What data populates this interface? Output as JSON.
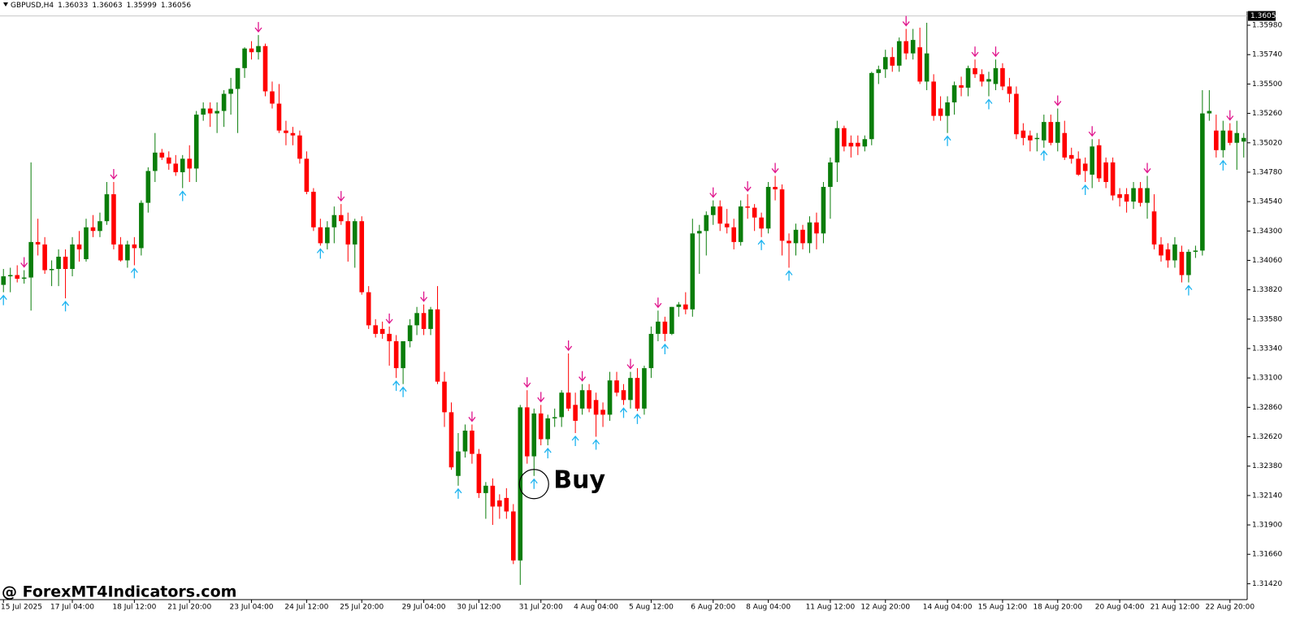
{
  "chart_data": {
    "type": "candlestick",
    "symbol": "GBPUSD,H4",
    "quote": [
      1.36033,
      1.36063,
      1.35999,
      1.36056
    ],
    "bull_color": "#0a7d0a",
    "bear_color": "#ff0000",
    "sell_color": "#e0148c",
    "buy_color": "#1eb4f0",
    "ylim": [
      1.3129,
      1.3606
    ],
    "yticks": [
      {
        "value": 1.3598,
        "label": "1.35980"
      },
      {
        "value": 1.3574,
        "label": "1.35740"
      },
      {
        "value": 1.355,
        "label": "1.35500"
      },
      {
        "value": 1.3526,
        "label": "1.35260"
      },
      {
        "value": 1.3502,
        "label": "1.35020"
      },
      {
        "value": 1.3478,
        "label": "1.34780"
      },
      {
        "value": 1.3454,
        "label": "1.34540"
      },
      {
        "value": 1.343,
        "label": "1.34300"
      },
      {
        "value": 1.3406,
        "label": "1.34060"
      },
      {
        "value": 1.3382,
        "label": "1.33820"
      },
      {
        "value": 1.3358,
        "label": "1.33580"
      },
      {
        "value": 1.3334,
        "label": "1.33340"
      },
      {
        "value": 1.331,
        "label": "1.33100"
      },
      {
        "value": 1.3286,
        "label": "1.32860"
      },
      {
        "value": 1.3262,
        "label": "1.32620"
      },
      {
        "value": 1.3238,
        "label": "1.32380"
      },
      {
        "value": 1.3214,
        "label": "1.32140"
      },
      {
        "value": 1.319,
        "label": "1.31900"
      },
      {
        "value": 1.3166,
        "label": "1.31660"
      },
      {
        "value": 1.3142,
        "label": "1.31420"
      }
    ],
    "current_price": 1.36056,
    "xticks": [
      {
        "value": 0,
        "label": "15 Jul 2025"
      },
      {
        "value": 10,
        "label": "17 Jul 04:00"
      },
      {
        "value": 19,
        "label": "18 Jul 12:00"
      },
      {
        "value": 27,
        "label": "21 Jul 20:00"
      },
      {
        "value": 36,
        "label": "23 Jul 04:00"
      },
      {
        "value": 44,
        "label": "24 Jul 12:00"
      },
      {
        "value": 52,
        "label": "25 Jul 20:00"
      },
      {
        "value": 61,
        "label": "29 Jul 04:00"
      },
      {
        "value": 69,
        "label": "30 Jul 12:00"
      },
      {
        "value": 78,
        "label": "31 Jul 20:00"
      },
      {
        "value": 86,
        "label": "4 Aug 04:00"
      },
      {
        "value": 94,
        "label": "5 Aug 12:00"
      },
      {
        "value": 103,
        "label": "6 Aug 20:00"
      },
      {
        "value": 111,
        "label": "8 Aug 04:00"
      },
      {
        "value": 120,
        "label": "11 Aug 12:00"
      },
      {
        "value": 128,
        "label": "12 Aug 20:00"
      },
      {
        "value": 137,
        "label": "14 Aug 04:00"
      },
      {
        "value": 145,
        "label": "15 Aug 12:00"
      },
      {
        "value": 153,
        "label": "18 Aug 20:00"
      },
      {
        "value": 162,
        "label": "20 Aug 04:00"
      },
      {
        "value": 170,
        "label": "21 Aug 12:00"
      },
      {
        "value": 178,
        "label": "22 Aug 20:00"
      }
    ],
    "candles": [
      [
        1.3386,
        1.3399,
        1.338,
        1.3393
      ],
      [
        1.3393,
        1.34,
        1.338,
        1.3394
      ],
      [
        1.3394,
        1.3402,
        1.3388,
        1.3391
      ],
      [
        1.3391,
        1.3398,
        1.3387,
        1.3392
      ],
      [
        1.3392,
        1.3486,
        1.3365,
        1.3421
      ],
      [
        1.3421,
        1.344,
        1.341,
        1.3419
      ],
      [
        1.3419,
        1.3425,
        1.3395,
        1.3398
      ],
      [
        1.3398,
        1.3406,
        1.3385,
        1.3399
      ],
      [
        1.3399,
        1.3415,
        1.3385,
        1.3409
      ],
      [
        1.3409,
        1.3415,
        1.3375,
        1.3399
      ],
      [
        1.3399,
        1.3425,
        1.3393,
        1.3419
      ],
      [
        1.3419,
        1.343,
        1.3405,
        1.3415
      ],
      [
        1.3407,
        1.344,
        1.3405,
        1.3433
      ],
      [
        1.3433,
        1.3443,
        1.3425,
        1.343
      ],
      [
        1.343,
        1.3445,
        1.3425,
        1.3438
      ],
      [
        1.3438,
        1.347,
        1.3435,
        1.346
      ],
      [
        1.346,
        1.347,
        1.3415,
        1.3419
      ],
      [
        1.3419,
        1.3425,
        1.3405,
        1.3406
      ],
      [
        1.3406,
        1.3422,
        1.34,
        1.3419
      ],
      [
        1.3419,
        1.3425,
        1.3402,
        1.3416
      ],
      [
        1.3416,
        1.3455,
        1.341,
        1.3453
      ],
      [
        1.3453,
        1.3482,
        1.3445,
        1.3479
      ],
      [
        1.3479,
        1.351,
        1.347,
        1.3494
      ],
      [
        1.3494,
        1.3497,
        1.3488,
        1.349
      ],
      [
        1.349,
        1.3495,
        1.348,
        1.3485
      ],
      [
        1.3485,
        1.3492,
        1.3475,
        1.3478
      ],
      [
        1.3478,
        1.3492,
        1.3465,
        1.3489
      ],
      [
        1.3489,
        1.35,
        1.347,
        1.3481
      ],
      [
        1.3481,
        1.3528,
        1.347,
        1.3525
      ],
      [
        1.3525,
        1.3535,
        1.352,
        1.353
      ],
      [
        1.353,
        1.3535,
        1.3515,
        1.3526
      ],
      [
        1.3526,
        1.3535,
        1.351,
        1.3528
      ],
      [
        1.3528,
        1.3545,
        1.3515,
        1.3542
      ],
      [
        1.3542,
        1.3555,
        1.3525,
        1.3546
      ],
      [
        1.3546,
        1.3563,
        1.351,
        1.3563
      ],
      [
        1.3563,
        1.358,
        1.3555,
        1.3579
      ],
      [
        1.3579,
        1.3585,
        1.357,
        1.3576
      ],
      [
        1.3576,
        1.359,
        1.357,
        1.3581
      ],
      [
        1.3581,
        1.3583,
        1.354,
        1.3544
      ],
      [
        1.3544,
        1.3552,
        1.353,
        1.3534
      ],
      [
        1.3534,
        1.355,
        1.351,
        1.3512
      ],
      [
        1.3512,
        1.352,
        1.35,
        1.351
      ],
      [
        1.351,
        1.3515,
        1.35,
        1.3508
      ],
      [
        1.3508,
        1.3512,
        1.3485,
        1.3489
      ],
      [
        1.3489,
        1.3495,
        1.346,
        1.3462
      ],
      [
        1.3462,
        1.3465,
        1.343,
        1.3433
      ],
      [
        1.3433,
        1.344,
        1.3418,
        1.342
      ],
      [
        1.342,
        1.3438,
        1.3415,
        1.3433
      ],
      [
        1.3433,
        1.345,
        1.342,
        1.3443
      ],
      [
        1.3443,
        1.3452,
        1.3435,
        1.3438
      ],
      [
        1.3438,
        1.3445,
        1.3405,
        1.3419
      ],
      [
        1.3419,
        1.344,
        1.34,
        1.3438
      ],
      [
        1.3438,
        1.3442,
        1.3378,
        1.338
      ],
      [
        1.338,
        1.3385,
        1.335,
        1.3353
      ],
      [
        1.3353,
        1.3358,
        1.3343,
        1.3346
      ],
      [
        1.335,
        1.3356,
        1.3342,
        1.3346
      ],
      [
        1.3346,
        1.3352,
        1.332,
        1.334
      ],
      [
        1.334,
        1.3345,
        1.331,
        1.3318
      ],
      [
        1.3318,
        1.334,
        1.3305,
        1.334
      ],
      [
        1.334,
        1.3358,
        1.3335,
        1.3353
      ],
      [
        1.3353,
        1.3368,
        1.3345,
        1.3363
      ],
      [
        1.3363,
        1.337,
        1.3345,
        1.335
      ],
      [
        1.335,
        1.3368,
        1.3345,
        1.3366
      ],
      [
        1.3366,
        1.3385,
        1.3305,
        1.3307
      ],
      [
        1.3307,
        1.3315,
        1.327,
        1.3282
      ],
      [
        1.3282,
        1.329,
        1.3235,
        1.3237
      ],
      [
        1.323,
        1.3265,
        1.3222,
        1.325
      ],
      [
        1.325,
        1.3272,
        1.3245,
        1.3267
      ],
      [
        1.3267,
        1.3272,
        1.324,
        1.3248
      ],
      [
        1.3248,
        1.3252,
        1.3212,
        1.3216
      ],
      [
        1.3216,
        1.3225,
        1.3195,
        1.3222
      ],
      [
        1.3222,
        1.3228,
        1.319,
        1.3205
      ],
      [
        1.321,
        1.3215,
        1.3195,
        1.3205
      ],
      [
        1.3212,
        1.322,
        1.3195,
        1.3201
      ],
      [
        1.3201,
        1.3207,
        1.3158,
        1.3161
      ],
      [
        1.3161,
        1.3288,
        1.3141,
        1.3286
      ],
      [
        1.3286,
        1.33,
        1.324,
        1.3246
      ],
      [
        1.3246,
        1.3285,
        1.323,
        1.3281
      ],
      [
        1.3281,
        1.3288,
        1.3255,
        1.326
      ],
      [
        1.326,
        1.328,
        1.3255,
        1.3277
      ],
      [
        1.3277,
        1.3285,
        1.327,
        1.3278
      ],
      [
        1.3278,
        1.33,
        1.327,
        1.3298
      ],
      [
        1.3298,
        1.333,
        1.3283,
        1.3285
      ],
      [
        1.3288,
        1.3298,
        1.3265,
        1.3275
      ],
      [
        1.3285,
        1.3305,
        1.328,
        1.33
      ],
      [
        1.33,
        1.3305,
        1.3282,
        1.3285
      ],
      [
        1.3292,
        1.3298,
        1.3262,
        1.328
      ],
      [
        1.3284,
        1.329,
        1.327,
        1.328
      ],
      [
        1.328,
        1.3315,
        1.3275,
        1.3308
      ],
      [
        1.3308,
        1.3315,
        1.3295,
        1.3298
      ],
      [
        1.33,
        1.3305,
        1.3288,
        1.3292
      ],
      [
        1.3292,
        1.3315,
        1.3285,
        1.331
      ],
      [
        1.331,
        1.3318,
        1.3283,
        1.3285
      ],
      [
        1.3285,
        1.332,
        1.328,
        1.3318
      ],
      [
        1.3318,
        1.3352,
        1.331,
        1.3346
      ],
      [
        1.3346,
        1.3365,
        1.334,
        1.3356
      ],
      [
        1.3356,
        1.336,
        1.334,
        1.3346
      ],
      [
        1.3346,
        1.3368,
        1.3345,
        1.3368
      ],
      [
        1.3368,
        1.3372,
        1.336,
        1.337
      ],
      [
        1.337,
        1.338,
        1.3362,
        1.3366
      ],
      [
        1.3366,
        1.344,
        1.336,
        1.3428
      ],
      [
        1.3428,
        1.3435,
        1.3395,
        1.343
      ],
      [
        1.343,
        1.3446,
        1.341,
        1.3443
      ],
      [
        1.3443,
        1.3455,
        1.3435,
        1.345
      ],
      [
        1.345,
        1.3455,
        1.343,
        1.3436
      ],
      [
        1.3436,
        1.3448,
        1.3428,
        1.3433
      ],
      [
        1.3433,
        1.344,
        1.3415,
        1.3421
      ],
      [
        1.3421,
        1.3455,
        1.3418,
        1.345
      ],
      [
        1.345,
        1.346,
        1.344,
        1.3449
      ],
      [
        1.3449,
        1.3452,
        1.343,
        1.3441
      ],
      [
        1.3441,
        1.3445,
        1.3425,
        1.3432
      ],
      [
        1.3432,
        1.347,
        1.3428,
        1.3466
      ],
      [
        1.3466,
        1.3475,
        1.3455,
        1.3464
      ],
      [
        1.3464,
        1.3468,
        1.341,
        1.3422
      ],
      [
        1.3422,
        1.3428,
        1.34,
        1.342
      ],
      [
        1.342,
        1.3436,
        1.341,
        1.3431
      ],
      [
        1.3431,
        1.3435,
        1.3415,
        1.342
      ],
      [
        1.342,
        1.3442,
        1.3412,
        1.3437
      ],
      [
        1.3437,
        1.3445,
        1.3415,
        1.3428
      ],
      [
        1.3428,
        1.347,
        1.342,
        1.3466
      ],
      [
        1.3466,
        1.349,
        1.344,
        1.3486
      ],
      [
        1.3486,
        1.352,
        1.347,
        1.3514
      ],
      [
        1.3514,
        1.3516,
        1.3495,
        1.3499
      ],
      [
        1.3502,
        1.3508,
        1.349,
        1.3499
      ],
      [
        1.3502,
        1.3508,
        1.3492,
        1.3499
      ],
      [
        1.3499,
        1.3508,
        1.3495,
        1.3505
      ],
      [
        1.3505,
        1.356,
        1.35,
        1.3559
      ],
      [
        1.3559,
        1.3565,
        1.355,
        1.3562
      ],
      [
        1.3562,
        1.3578,
        1.3555,
        1.3572
      ],
      [
        1.3572,
        1.358,
        1.356,
        1.3565
      ],
      [
        1.3565,
        1.3588,
        1.356,
        1.3585
      ],
      [
        1.3585,
        1.3595,
        1.357,
        1.3575
      ],
      [
        1.3575,
        1.3595,
        1.357,
        1.3586
      ],
      [
        1.358,
        1.3596,
        1.355,
        1.3552
      ],
      [
        1.3552,
        1.36,
        1.3545,
        1.3575
      ],
      [
        1.3552,
        1.3558,
        1.352,
        1.3524
      ],
      [
        1.353,
        1.354,
        1.352,
        1.3524
      ],
      [
        1.3524,
        1.354,
        1.351,
        1.3535
      ],
      [
        1.3535,
        1.3552,
        1.3525,
        1.3549
      ],
      [
        1.3549,
        1.3556,
        1.354,
        1.3547
      ],
      [
        1.3547,
        1.3565,
        1.354,
        1.3563
      ],
      [
        1.3563,
        1.357,
        1.3555,
        1.3558
      ],
      [
        1.3558,
        1.3562,
        1.3548,
        1.3552
      ],
      [
        1.3552,
        1.356,
        1.354,
        1.3554
      ],
      [
        1.355,
        1.357,
        1.3545,
        1.3563
      ],
      [
        1.3563,
        1.3567,
        1.3545,
        1.3548
      ],
      [
        1.3548,
        1.3555,
        1.3535,
        1.3542
      ],
      [
        1.3542,
        1.3548,
        1.3505,
        1.3509
      ],
      [
        1.3512,
        1.3518,
        1.35,
        1.3506
      ],
      [
        1.3508,
        1.3512,
        1.3495,
        1.3504
      ],
      [
        1.3505,
        1.351,
        1.3495,
        1.3506
      ],
      [
        1.3504,
        1.3525,
        1.3498,
        1.3519
      ],
      [
        1.3519,
        1.3525,
        1.35,
        1.3502
      ],
      [
        1.3502,
        1.353,
        1.3495,
        1.3519
      ],
      [
        1.351,
        1.352,
        1.3488,
        1.349
      ],
      [
        1.3492,
        1.3498,
        1.3485,
        1.3489
      ],
      [
        1.3489,
        1.3495,
        1.3475,
        1.3476
      ],
      [
        1.3485,
        1.349,
        1.347,
        1.3479
      ],
      [
        1.3476,
        1.3505,
        1.3465,
        1.3499
      ],
      [
        1.35,
        1.3505,
        1.347,
        1.3473
      ],
      [
        1.3486,
        1.349,
        1.3465,
        1.347
      ],
      [
        1.3486,
        1.349,
        1.3455,
        1.3459
      ],
      [
        1.346,
        1.3465,
        1.345,
        1.3457
      ],
      [
        1.346,
        1.3465,
        1.3445,
        1.3454
      ],
      [
        1.3454,
        1.347,
        1.3448,
        1.3465
      ],
      [
        1.3465,
        1.347,
        1.345,
        1.3453
      ],
      [
        1.3453,
        1.3475,
        1.344,
        1.3465
      ],
      [
        1.3446,
        1.346,
        1.3415,
        1.3419
      ],
      [
        1.3419,
        1.3425,
        1.3405,
        1.341
      ],
      [
        1.3415,
        1.342,
        1.34,
        1.3406
      ],
      [
        1.3406,
        1.3425,
        1.34,
        1.3419
      ],
      [
        1.3413,
        1.3418,
        1.3388,
        1.3394
      ],
      [
        1.3394,
        1.3415,
        1.3388,
        1.3413
      ],
      [
        1.3413,
        1.3418,
        1.3408,
        1.3414
      ],
      [
        1.3414,
        1.3545,
        1.341,
        1.3526
      ],
      [
        1.3526,
        1.3545,
        1.352,
        1.3528
      ],
      [
        1.3512,
        1.3525,
        1.349,
        1.3496
      ],
      [
        1.3496,
        1.352,
        1.349,
        1.3512
      ],
      [
        1.3512,
        1.3518,
        1.35,
        1.3502
      ],
      [
        1.3502,
        1.352,
        1.348,
        1.351
      ],
      [
        1.3503,
        1.351,
        1.349,
        1.3506
      ]
    ],
    "sell_signals": [
      3,
      16,
      37,
      49,
      56,
      61,
      68,
      76,
      78,
      82,
      84,
      91,
      95,
      103,
      108,
      112,
      131,
      141,
      144,
      153,
      158,
      166,
      178
    ],
    "buy_signals": [
      0,
      9,
      19,
      26,
      46,
      57,
      58,
      66,
      77,
      79,
      83,
      86,
      90,
      92,
      96,
      110,
      114,
      137,
      143,
      151,
      157,
      172,
      177
    ],
    "annotation": {
      "text": "Buy",
      "index": 77
    },
    "watermark": "@ ForexMT4Indicators.com"
  }
}
